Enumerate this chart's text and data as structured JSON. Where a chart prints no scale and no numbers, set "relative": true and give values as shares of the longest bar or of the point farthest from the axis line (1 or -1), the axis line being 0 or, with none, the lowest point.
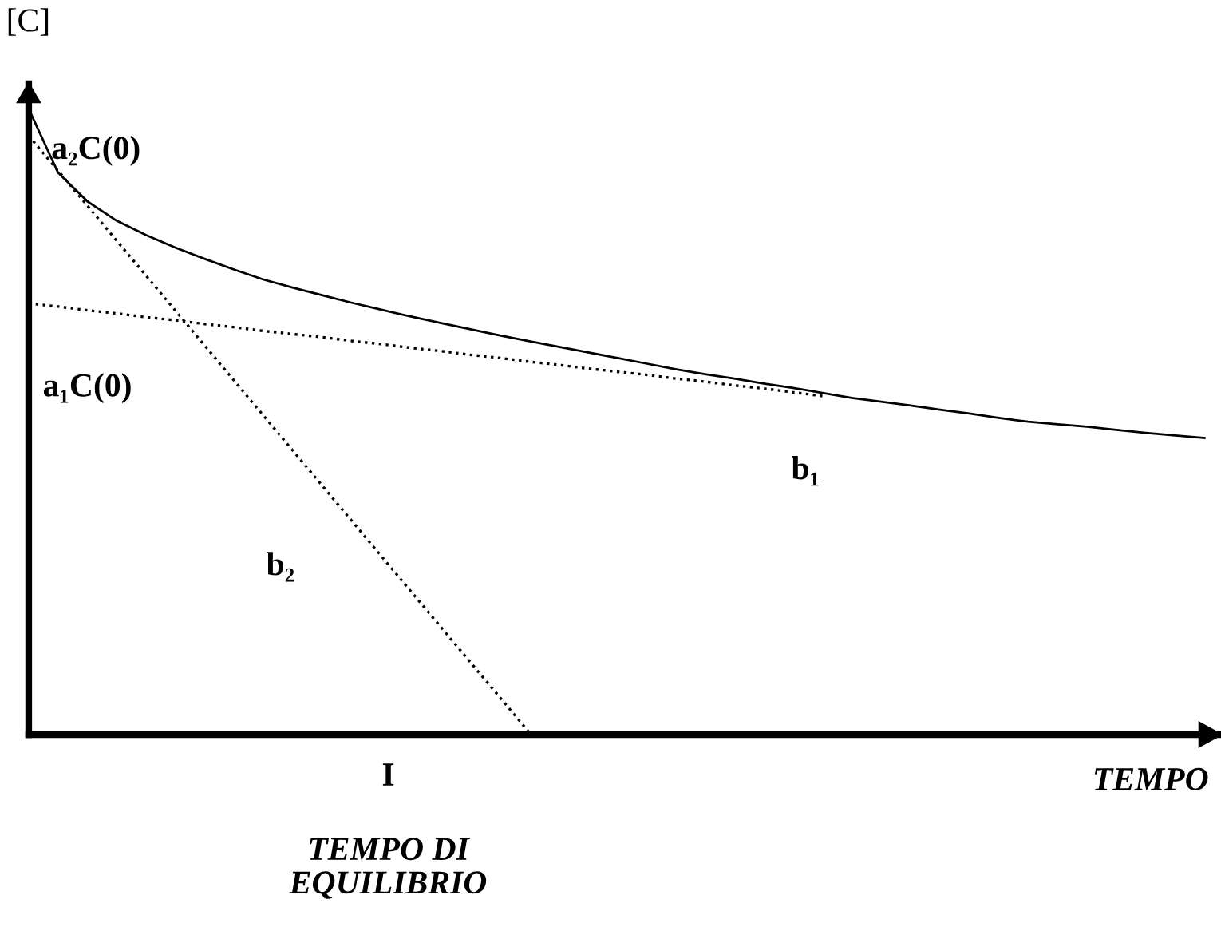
{
  "chart_data": {
    "type": "line",
    "relative": true,
    "xlabel": "TEMPO",
    "ylabel": "[C]",
    "categories": [
      null,
      null,
      null,
      null,
      null,
      null,
      null,
      null,
      null,
      null,
      null,
      null,
      null,
      null,
      null,
      null,
      null,
      null,
      null,
      null,
      null,
      null,
      null,
      null,
      null,
      null,
      null,
      null,
      null,
      null,
      null,
      null,
      null,
      null,
      null,
      null,
      null,
      null,
      null,
      null,
      null
    ],
    "series": [
      {
        "color": "#000000",
        "line_style": "solid",
        "values": [
          1.0,
          0.898,
          0.852,
          0.821,
          0.798,
          0.778,
          0.76,
          0.743,
          0.727,
          0.714,
          0.702,
          0.69,
          0.679,
          0.668,
          0.658,
          0.648,
          0.638,
          0.629,
          0.62,
          0.611,
          0.602,
          0.593,
          0.584,
          0.576,
          0.569,
          0.561,
          0.554,
          0.546,
          0.538,
          0.532,
          0.526,
          0.519,
          0.513,
          0.506,
          0.5,
          0.496,
          0.492,
          0.487,
          0.482,
          0.478,
          0.474
        ]
      },
      {
        "color": "#000000",
        "line_style": "dotted",
        "values": [
          0.689,
          0.684,
          0.678,
          0.673,
          0.667,
          0.662,
          0.656,
          0.651,
          0.645,
          0.64,
          0.635,
          0.629,
          0.624,
          0.618,
          0.613,
          0.607,
          0.602,
          0.596,
          0.591,
          0.585,
          0.58,
          0.575,
          0.569,
          0.564,
          0.558,
          0.553,
          0.547,
          0.541,
          null,
          null,
          null,
          null,
          null,
          null,
          null,
          null,
          null,
          null,
          null,
          null,
          null
        ]
      },
      {
        "color": "#000000",
        "line_style": "dotted",
        "values": [
          0.957,
          0.901,
          0.845,
          0.789,
          0.733,
          0.677,
          0.621,
          0.565,
          0.509,
          0.453,
          0.397,
          0.341,
          0.285,
          0.229,
          0.173,
          0.117,
          0.061,
          0.005,
          null,
          null,
          null,
          null,
          null,
          null,
          null,
          null,
          null,
          null,
          null,
          null,
          null,
          null,
          null,
          null,
          null,
          null,
          null,
          null,
          null,
          null,
          null
        ]
      }
    ],
    "annotations": [
      "a₂C(0)",
      "a₁C(0)",
      "b₁",
      "b₂",
      "I",
      "TEMPO DI\nEQUILIBRIO"
    ],
    "legend": false,
    "grid": false,
    "marker": "none"
  }
}
